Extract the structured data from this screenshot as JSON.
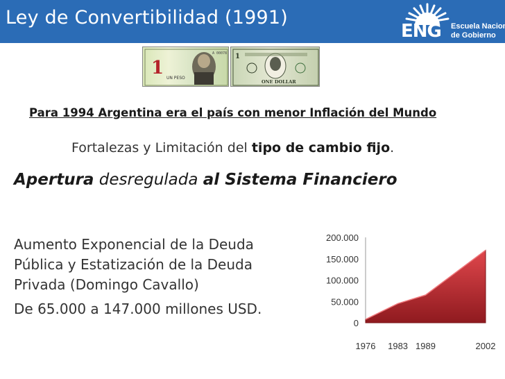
{
  "header": {
    "title": "Ley de Convertibilidad (1991)",
    "logo": {
      "mark": "ENG",
      "line1": "Escuela Nacional",
      "line2": "de Gobierno"
    }
  },
  "images": {
    "peso_bill": {
      "value_text": "1",
      "denomination": "UN PESO",
      "icon": "peso-banknote-icon"
    },
    "dollar_bill": {
      "value_text": "1",
      "denomination": "ONE DOLLAR",
      "icon": "dollar-banknote-icon"
    }
  },
  "content": {
    "headline": "Para 1994 Argentina era el país con menor Inflación del Mundo",
    "fortalezas_pre": "Fortalezas y Limitación del ",
    "fortalezas_bold": "tipo de cambio fijo",
    "fortalezas_post": ".",
    "apertura_1": "Apertura",
    "apertura_2": " desregulada ",
    "apertura_3": "al Sistema Financiero",
    "body_1": "Aumento Exponencial de la Deuda Pública y Estatización de la Deuda Privada (Domingo Cavallo)",
    "body_2": "De 65.000 a 147.000 millones USD."
  },
  "chart_data": {
    "type": "area",
    "categories": [
      "1976",
      "1983",
      "1989",
      "2002"
    ],
    "x": [
      1976,
      1983,
      1989,
      2002
    ],
    "values": [
      8000,
      45000,
      65000,
      170000
    ],
    "ytick_labels": [
      "0",
      "50.000",
      "100.000",
      "150.000",
      "200.000"
    ],
    "yticks": [
      0,
      50000,
      100000,
      150000,
      200000
    ],
    "ylim": [
      0,
      200000
    ],
    "xlim": [
      1976,
      2002
    ],
    "color": "#c0282e",
    "grid": false,
    "legend": "none"
  }
}
